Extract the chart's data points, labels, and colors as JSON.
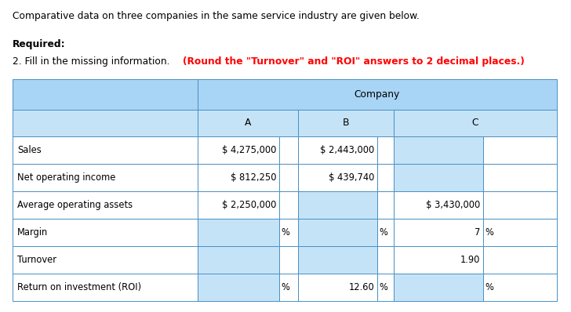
{
  "title_line1": "Comparative data on three companies in the same service industry are given below.",
  "title_line2_bold": "Required:",
  "title_line2_normal": "2. Fill in the missing information. ",
  "title_line2_red": "(Round the \"Turnover\" and \"ROI\" answers to 2 decimal places.)",
  "header_company": "Company",
  "col_headers": [
    "A",
    "B",
    "C"
  ],
  "row_labels": [
    "Sales",
    "Net operating income",
    "Average operating assets",
    "Margin",
    "Turnover",
    "Return on investment (ROI)"
  ],
  "header_bg": "#a8d4f5",
  "subhdr_bg": "#c5e3f7",
  "input_bg": "#c5e3f7",
  "white_bg": "#ffffff",
  "border_color": "#4a90c4",
  "fig_width": 7.28,
  "fig_height": 3.98,
  "dpi": 100,
  "rows": [
    {
      "label": "Sales",
      "A_val": "$ 4,275,000",
      "A_blank": false,
      "A_unit": "",
      "A_unit_show": false,
      "B_val": "$ 2,443,000",
      "B_blank": false,
      "B_unit": "",
      "B_unit_show": false,
      "C_val": "",
      "C_blank": true,
      "C_unit": "",
      "C_unit_show": false
    },
    {
      "label": "Net operating income",
      "A_val": "$ 812,250",
      "A_blank": false,
      "A_unit": "",
      "A_unit_show": false,
      "B_val": "$ 439,740",
      "B_blank": false,
      "B_unit": "",
      "B_unit_show": false,
      "C_val": "",
      "C_blank": true,
      "C_unit": "",
      "C_unit_show": false
    },
    {
      "label": "Average operating assets",
      "A_val": "$ 2,250,000",
      "A_blank": false,
      "A_unit": "",
      "A_unit_show": false,
      "B_val": "",
      "B_blank": true,
      "B_unit": "",
      "B_unit_show": false,
      "C_val": "$ 3,430,000",
      "C_blank": false,
      "C_unit": "",
      "C_unit_show": false
    },
    {
      "label": "Margin",
      "A_val": "",
      "A_blank": true,
      "A_unit": "%",
      "A_unit_show": true,
      "B_val": "",
      "B_blank": true,
      "B_unit": "%",
      "B_unit_show": true,
      "C_val": "7",
      "C_blank": false,
      "C_unit": "%",
      "C_unit_show": true
    },
    {
      "label": "Turnover",
      "A_val": "",
      "A_blank": true,
      "A_unit": "",
      "A_unit_show": false,
      "B_val": "",
      "B_blank": true,
      "B_unit": "",
      "B_unit_show": false,
      "C_val": "1.90",
      "C_blank": false,
      "C_unit": "",
      "C_unit_show": false
    },
    {
      "label": "Return on investment (ROI)",
      "A_val": "",
      "A_blank": true,
      "A_unit": "%",
      "A_unit_show": true,
      "B_val": "12.60",
      "B_blank": false,
      "B_unit": "%",
      "B_unit_show": true,
      "C_val": "",
      "C_blank": true,
      "C_unit": "%",
      "C_unit_show": true
    }
  ]
}
